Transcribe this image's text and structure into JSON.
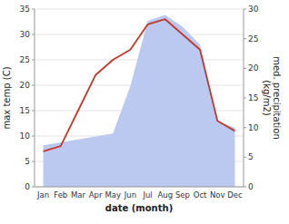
{
  "chart_data": {
    "type": "line",
    "xlabel": "date (month)",
    "ylabel": "max temp (C)",
    "y2label": "med. precipitation\n(kg/m2)",
    "categories": [
      "Jan",
      "Feb",
      "Mar",
      "Apr",
      "May",
      "Jun",
      "Jul",
      "Aug",
      "Sep",
      "Oct",
      "Nov",
      "Dec"
    ],
    "series": [
      {
        "type": "area",
        "axis": "y2",
        "color": "#bbc8ef",
        "values": [
          7.0,
          7.5,
          8.0,
          8.5,
          9.0,
          17.0,
          28.0,
          29.0,
          27.0,
          24.0,
          11.0,
          10.0
        ]
      },
      {
        "type": "line",
        "color": "#c0392b",
        "values": [
          7.0,
          8.0,
          15.0,
          22.0,
          25.0,
          27.0,
          32.0,
          33.0,
          30.0,
          27.0,
          13.0,
          11.0
        ]
      }
    ],
    "ylim": [
      0,
      35
    ],
    "yticks": [
      0,
      5,
      10,
      15,
      20,
      25,
      30,
      35
    ],
    "y2lim": [
      0,
      30
    ],
    "y2ticks": [
      0,
      5,
      10,
      15,
      20,
      25,
      30
    ],
    "grid": true
  }
}
